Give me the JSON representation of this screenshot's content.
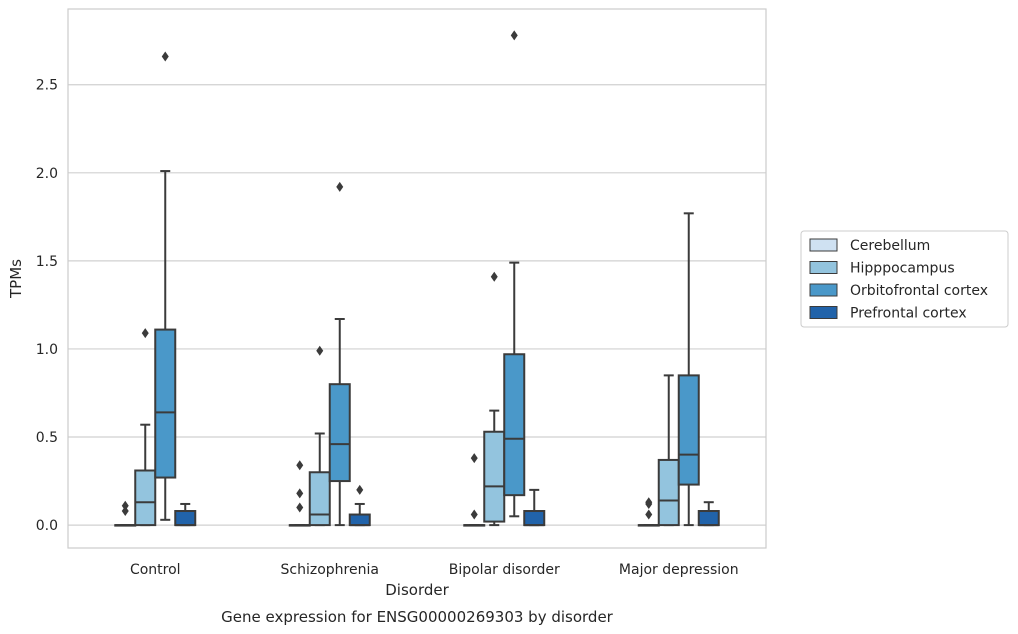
{
  "chart_data": {
    "type": "box",
    "title": "",
    "caption": "Gene expression for ENSG00000269303 by disorder",
    "xlabel": "Disorder",
    "ylabel": "TPMs",
    "ylim": [
      -0.13,
      2.93
    ],
    "yticks": [
      0.0,
      0.5,
      1.0,
      1.5,
      2.0,
      2.5
    ],
    "ytick_labels": [
      "0.0",
      "0.5",
      "1.0",
      "1.5",
      "2.0",
      "2.5"
    ],
    "grid": "horizontal",
    "legend_position": "right",
    "categories": [
      "Control",
      "Schizophrenia",
      "Bipolar disorder",
      "Major depression"
    ],
    "series": [
      {
        "name": "Cerebellum",
        "color": "#cfe1f2",
        "boxes": [
          {
            "whislo": 0.0,
            "q1": 0.0,
            "med": 0.0,
            "q3": 0.0,
            "whishi": 0.0,
            "fliers": [
              0.08,
              0.11
            ]
          },
          {
            "whislo": 0.0,
            "q1": 0.0,
            "med": 0.0,
            "q3": 0.0,
            "whishi": 0.0,
            "fliers": [
              0.1,
              0.18,
              0.34
            ]
          },
          {
            "whislo": 0.0,
            "q1": 0.0,
            "med": 0.0,
            "q3": 0.0,
            "whishi": 0.0,
            "fliers": [
              0.06,
              0.38
            ]
          },
          {
            "whislo": 0.0,
            "q1": 0.0,
            "med": 0.0,
            "q3": 0.0,
            "whishi": 0.0,
            "fliers": [
              0.06,
              0.12,
              0.13
            ]
          }
        ]
      },
      {
        "name": "Hipppocampus",
        "color": "#93c4de",
        "boxes": [
          {
            "whislo": 0.0,
            "q1": 0.0,
            "med": 0.13,
            "q3": 0.31,
            "whishi": 0.57,
            "fliers": [
              1.09
            ]
          },
          {
            "whislo": 0.0,
            "q1": 0.0,
            "med": 0.06,
            "q3": 0.3,
            "whishi": 0.52,
            "fliers": [
              0.99
            ]
          },
          {
            "whislo": 0.0,
            "q1": 0.02,
            "med": 0.22,
            "q3": 0.53,
            "whishi": 0.65,
            "fliers": [
              1.41
            ]
          },
          {
            "whislo": 0.0,
            "q1": 0.0,
            "med": 0.14,
            "q3": 0.37,
            "whishi": 0.85,
            "fliers": []
          }
        ]
      },
      {
        "name": "Orbitofrontal cortex",
        "color": "#4a98c9",
        "boxes": [
          {
            "whislo": 0.03,
            "q1": 0.27,
            "med": 0.64,
            "q3": 1.11,
            "whishi": 2.01,
            "fliers": [
              2.66
            ]
          },
          {
            "whislo": 0.0,
            "q1": 0.25,
            "med": 0.46,
            "q3": 0.8,
            "whishi": 1.17,
            "fliers": [
              1.92
            ]
          },
          {
            "whislo": 0.05,
            "q1": 0.17,
            "med": 0.49,
            "q3": 0.97,
            "whishi": 1.49,
            "fliers": [
              2.78
            ]
          },
          {
            "whislo": 0.0,
            "q1": 0.23,
            "med": 0.4,
            "q3": 0.85,
            "whishi": 1.77,
            "fliers": []
          }
        ]
      },
      {
        "name": "Prefrontal cortex",
        "color": "#2163aa",
        "boxes": [
          {
            "whislo": 0.0,
            "q1": 0.0,
            "med": 0.0,
            "q3": 0.08,
            "whishi": 0.12,
            "fliers": []
          },
          {
            "whislo": 0.0,
            "q1": 0.0,
            "med": 0.0,
            "q3": 0.06,
            "whishi": 0.12,
            "fliers": [
              0.2
            ]
          },
          {
            "whislo": 0.0,
            "q1": 0.0,
            "med": 0.0,
            "q3": 0.08,
            "whishi": 0.2,
            "fliers": []
          },
          {
            "whislo": 0.0,
            "q1": 0.0,
            "med": 0.0,
            "q3": 0.08,
            "whishi": 0.13,
            "fliers": []
          }
        ]
      }
    ]
  }
}
